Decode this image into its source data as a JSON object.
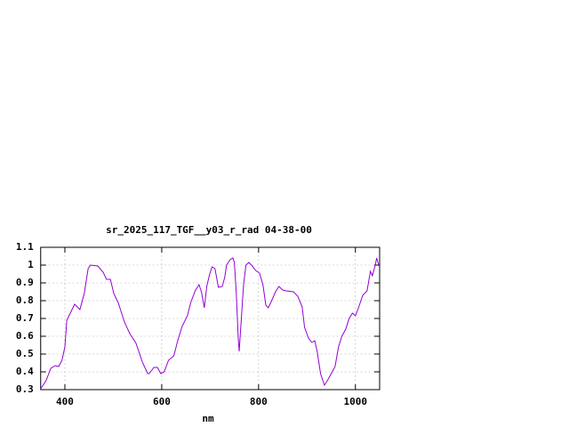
{
  "chart_data": {
    "type": "line",
    "title": "sr_2025_117_TGF__y03_r_rad 04-38-00",
    "xlabel": "nm",
    "x": [
      350,
      361,
      371,
      380,
      387,
      394,
      400,
      404,
      413,
      420,
      431,
      440,
      448,
      453,
      468,
      479,
      486,
      494,
      501,
      510,
      523,
      534,
      547,
      560,
      571,
      574,
      584,
      591,
      598,
      605,
      614,
      625,
      633,
      642,
      653,
      660,
      669,
      677,
      682,
      688,
      693,
      699,
      704,
      710,
      717,
      725,
      730,
      734,
      741,
      747,
      750,
      754,
      758,
      760,
      763,
      769,
      774,
      780,
      787,
      794,
      802,
      809,
      815,
      820,
      827,
      835,
      842,
      850,
      857,
      872,
      881,
      890,
      895,
      903,
      910,
      916,
      921,
      928,
      936,
      943,
      950,
      958,
      965,
      972,
      980,
      987,
      994,
      1000,
      1007,
      1015,
      1024,
      1031,
      1035,
      1040,
      1044,
      1048
    ],
    "series": [
      {
        "color": "#9400d3",
        "values": [
          0.305,
          0.35,
          0.42,
          0.435,
          0.43,
          0.465,
          0.54,
          0.69,
          0.74,
          0.78,
          0.75,
          0.84,
          0.98,
          1.0,
          0.995,
          0.96,
          0.92,
          0.92,
          0.84,
          0.79,
          0.68,
          0.615,
          0.56,
          0.455,
          0.39,
          0.39,
          0.425,
          0.425,
          0.39,
          0.4,
          0.465,
          0.49,
          0.575,
          0.655,
          0.715,
          0.79,
          0.855,
          0.89,
          0.85,
          0.76,
          0.88,
          0.95,
          0.99,
          0.98,
          0.875,
          0.88,
          0.93,
          1.0,
          1.03,
          1.04,
          1.015,
          0.84,
          0.59,
          0.515,
          0.64,
          0.89,
          1.0,
          1.015,
          0.995,
          0.97,
          0.955,
          0.89,
          0.775,
          0.76,
          0.8,
          0.85,
          0.88,
          0.86,
          0.855,
          0.85,
          0.825,
          0.765,
          0.65,
          0.59,
          0.565,
          0.575,
          0.515,
          0.39,
          0.325,
          0.355,
          0.39,
          0.43,
          0.54,
          0.6,
          0.64,
          0.7,
          0.73,
          0.715,
          0.765,
          0.83,
          0.855,
          0.965,
          0.94,
          0.99,
          1.04,
          1.0
        ]
      }
    ],
    "xlim": [
      350,
      1050
    ],
    "xticks": [
      400,
      600,
      800,
      1000
    ],
    "ylim": [
      0.3,
      1.1
    ],
    "yticks": [
      0.3,
      0.4,
      0.5,
      0.6,
      0.7,
      0.8,
      0.9,
      1,
      1.1
    ],
    "grid": true
  }
}
